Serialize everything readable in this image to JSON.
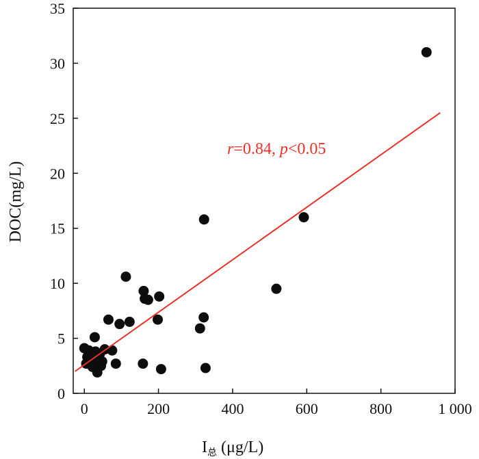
{
  "chart_data": {
    "type": "scatter",
    "title": "",
    "xlabel": "I",
    "xlabel_subscript": "总",
    "xlabel_unit": "(μg/L)",
    "ylabel": "DOC(mg/L)",
    "xlim": [
      -30,
      1000
    ],
    "ylim": [
      0,
      35
    ],
    "xticks": [
      0,
      200,
      400,
      600,
      800,
      1000
    ],
    "xtick_labels": [
      "0",
      "200",
      "400",
      "600",
      "800",
      "1 000"
    ],
    "yticks": [
      0,
      5,
      10,
      15,
      20,
      25,
      30,
      35
    ],
    "ytick_labels": [
      "0",
      "5",
      "10",
      "15",
      "20",
      "25",
      "30",
      "35"
    ],
    "grid": false,
    "points": [
      {
        "x": 0,
        "y": 4.1
      },
      {
        "x": 5,
        "y": 2.7
      },
      {
        "x": 8,
        "y": 3.3
      },
      {
        "x": 12,
        "y": 3.9
      },
      {
        "x": 15,
        "y": 2.8
      },
      {
        "x": 18,
        "y": 3.5
      },
      {
        "x": 22,
        "y": 2.4
      },
      {
        "x": 25,
        "y": 3.2
      },
      {
        "x": 28,
        "y": 5.1
      },
      {
        "x": 30,
        "y": 3.8
      },
      {
        "x": 33,
        "y": 2.6
      },
      {
        "x": 35,
        "y": 1.9
      },
      {
        "x": 38,
        "y": 3.0
      },
      {
        "x": 42,
        "y": 3.6
      },
      {
        "x": 45,
        "y": 2.5
      },
      {
        "x": 48,
        "y": 2.9
      },
      {
        "x": 55,
        "y": 4.0
      },
      {
        "x": 65,
        "y": 6.7
      },
      {
        "x": 75,
        "y": 3.9
      },
      {
        "x": 85,
        "y": 2.7
      },
      {
        "x": 95,
        "y": 6.3
      },
      {
        "x": 112,
        "y": 10.6
      },
      {
        "x": 122,
        "y": 6.5
      },
      {
        "x": 158,
        "y": 2.7
      },
      {
        "x": 160,
        "y": 9.3
      },
      {
        "x": 163,
        "y": 8.6
      },
      {
        "x": 172,
        "y": 8.5
      },
      {
        "x": 198,
        "y": 6.7
      },
      {
        "x": 202,
        "y": 8.8
      },
      {
        "x": 207,
        "y": 2.2
      },
      {
        "x": 312,
        "y": 5.9
      },
      {
        "x": 322,
        "y": 6.9
      },
      {
        "x": 323,
        "y": 15.8
      },
      {
        "x": 327,
        "y": 2.3
      },
      {
        "x": 518,
        "y": 9.5
      },
      {
        "x": 592,
        "y": 16.0
      },
      {
        "x": 923,
        "y": 31.0
      }
    ],
    "fit_line": {
      "x": [
        -25,
        960
      ],
      "y": [
        2.0,
        25.5
      ],
      "color": "#e8322a"
    },
    "annotation": {
      "r_symbol": "r",
      "r_text": "=0.84, ",
      "p_symbol": "p",
      "p_text": "<0.05",
      "color": "#e8322a"
    },
    "point_color": "#0d0d0d"
  }
}
